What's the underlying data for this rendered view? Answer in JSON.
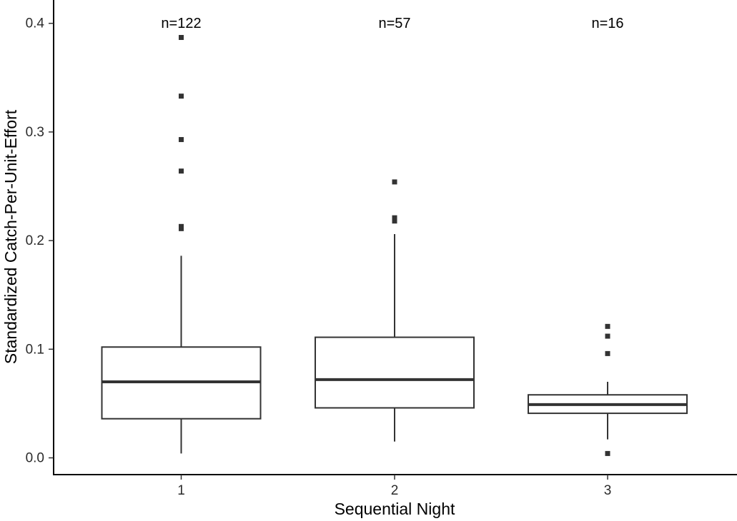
{
  "chart_data": {
    "type": "boxplot",
    "xlabel": "Sequential Night",
    "ylabel": "Standardized Catch-Per-Unit-Effort",
    "categories": [
      "1",
      "2",
      "3"
    ],
    "ylim": [
      -0.015,
      0.42
    ],
    "yticks": [
      {
        "value": 0.0,
        "label": "0.0"
      },
      {
        "value": 0.1,
        "label": "0.1"
      },
      {
        "value": 0.2,
        "label": "0.2"
      },
      {
        "value": 0.3,
        "label": "0.3"
      },
      {
        "value": 0.4,
        "label": "0.4"
      }
    ],
    "grid": false,
    "boxes": [
      {
        "category": "1",
        "n_label": "n=122",
        "whisker_low": 0.004,
        "q1": 0.036,
        "median": 0.07,
        "q3": 0.102,
        "whisker_high": 0.186,
        "outliers": [
          0.211,
          0.213,
          0.264,
          0.293,
          0.333,
          0.387
        ]
      },
      {
        "category": "2",
        "n_label": "n=57",
        "whisker_low": 0.015,
        "q1": 0.046,
        "median": 0.072,
        "q3": 0.111,
        "whisker_high": 0.206,
        "outliers": [
          0.218,
          0.221,
          0.254
        ]
      },
      {
        "category": "3",
        "n_label": "n=16",
        "whisker_low": 0.017,
        "q1": 0.041,
        "median": 0.049,
        "q3": 0.058,
        "whisker_high": 0.07,
        "outliers": [
          0.004,
          0.096,
          0.112,
          0.121
        ]
      }
    ]
  }
}
